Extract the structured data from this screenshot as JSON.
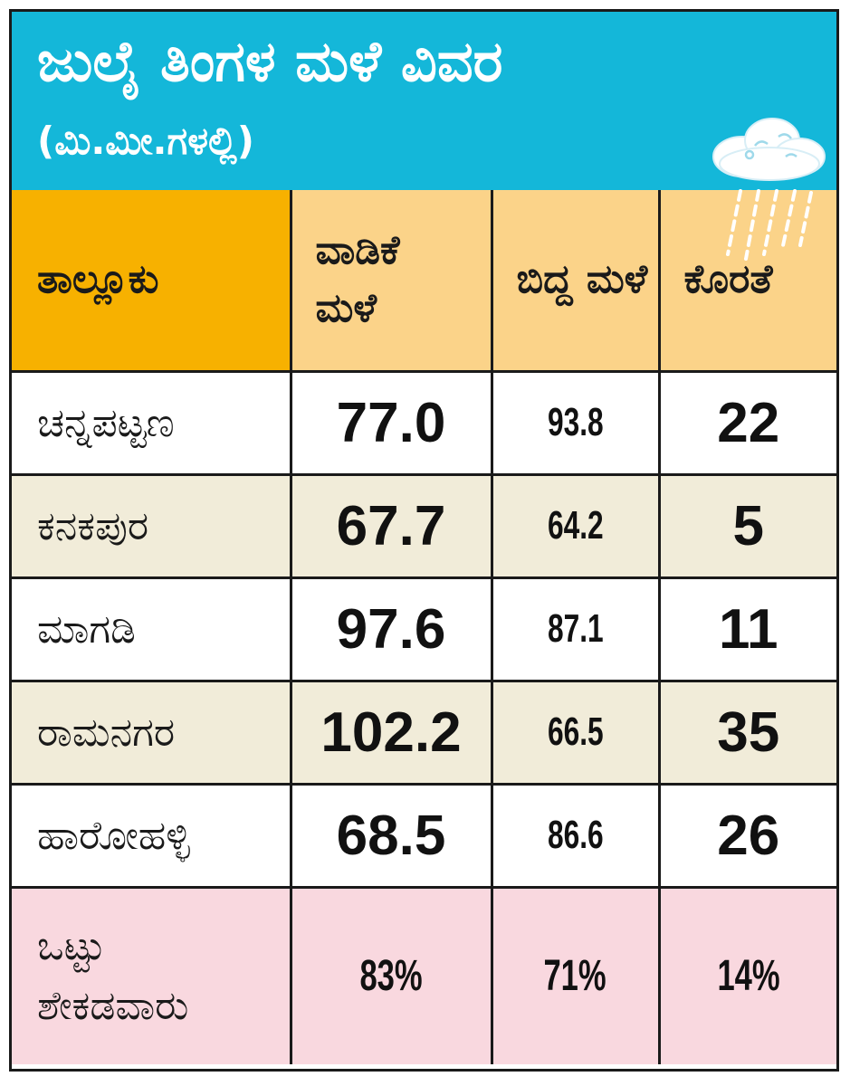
{
  "title": "ಜುಲೈ ತಿಂಗಳ ಮಳೆ ವಿವರ",
  "subtitle": "(ಮಿ.ಮೀ.ಗಳಲ್ಲಿ)",
  "icon": "rain-cloud-icon",
  "colors": {
    "banner": "#14b7d9",
    "header_first": "#f7b100",
    "header_other": "#fbd389",
    "row_alt": "#f1ecd9",
    "total_row": "#f9d8df"
  },
  "chart_data": {
    "type": "table",
    "title": "ಜುಲೈ ತಿಂಗಳ ಮಳೆ ವಿವರ",
    "subtitle": "(ಮಿ.ಮೀ.ಗಳಲ್ಲಿ)",
    "columns": [
      "ತಾಲ್ಲೂಕು",
      "ವಾಡಿಕೆ ಮಳೆ",
      "ಬಿದ್ದ ಮಳೆ",
      "ಕೊರತೆ"
    ],
    "rows": [
      {
        "taluk": "ಚನ್ನಪಟ್ಟಣ",
        "normal": "77.0",
        "actual": "93.8",
        "deficit": "22"
      },
      {
        "taluk": "ಕನಕಪುರ",
        "normal": "67.7",
        "actual": "64.2",
        "deficit": "5"
      },
      {
        "taluk": "ಮಾಗಡಿ",
        "normal": "97.6",
        "actual": "87.1",
        "deficit": "11"
      },
      {
        "taluk": "ರಾಮನಗರ",
        "normal": "102.2",
        "actual": "66.5",
        "deficit": "35"
      },
      {
        "taluk": "ಹಾರೋಹಳ್ಳಿ",
        "normal": "68.5",
        "actual": "86.6",
        "deficit": "26"
      }
    ],
    "total": {
      "label": "ಒಟ್ಟು ಶೇಕಡವಾರು",
      "label_lines": [
        "ಒಟ್ಟು",
        "ಶೇಕಡವಾರು"
      ],
      "normal": "83%",
      "actual": "71%",
      "deficit": "14%"
    }
  }
}
